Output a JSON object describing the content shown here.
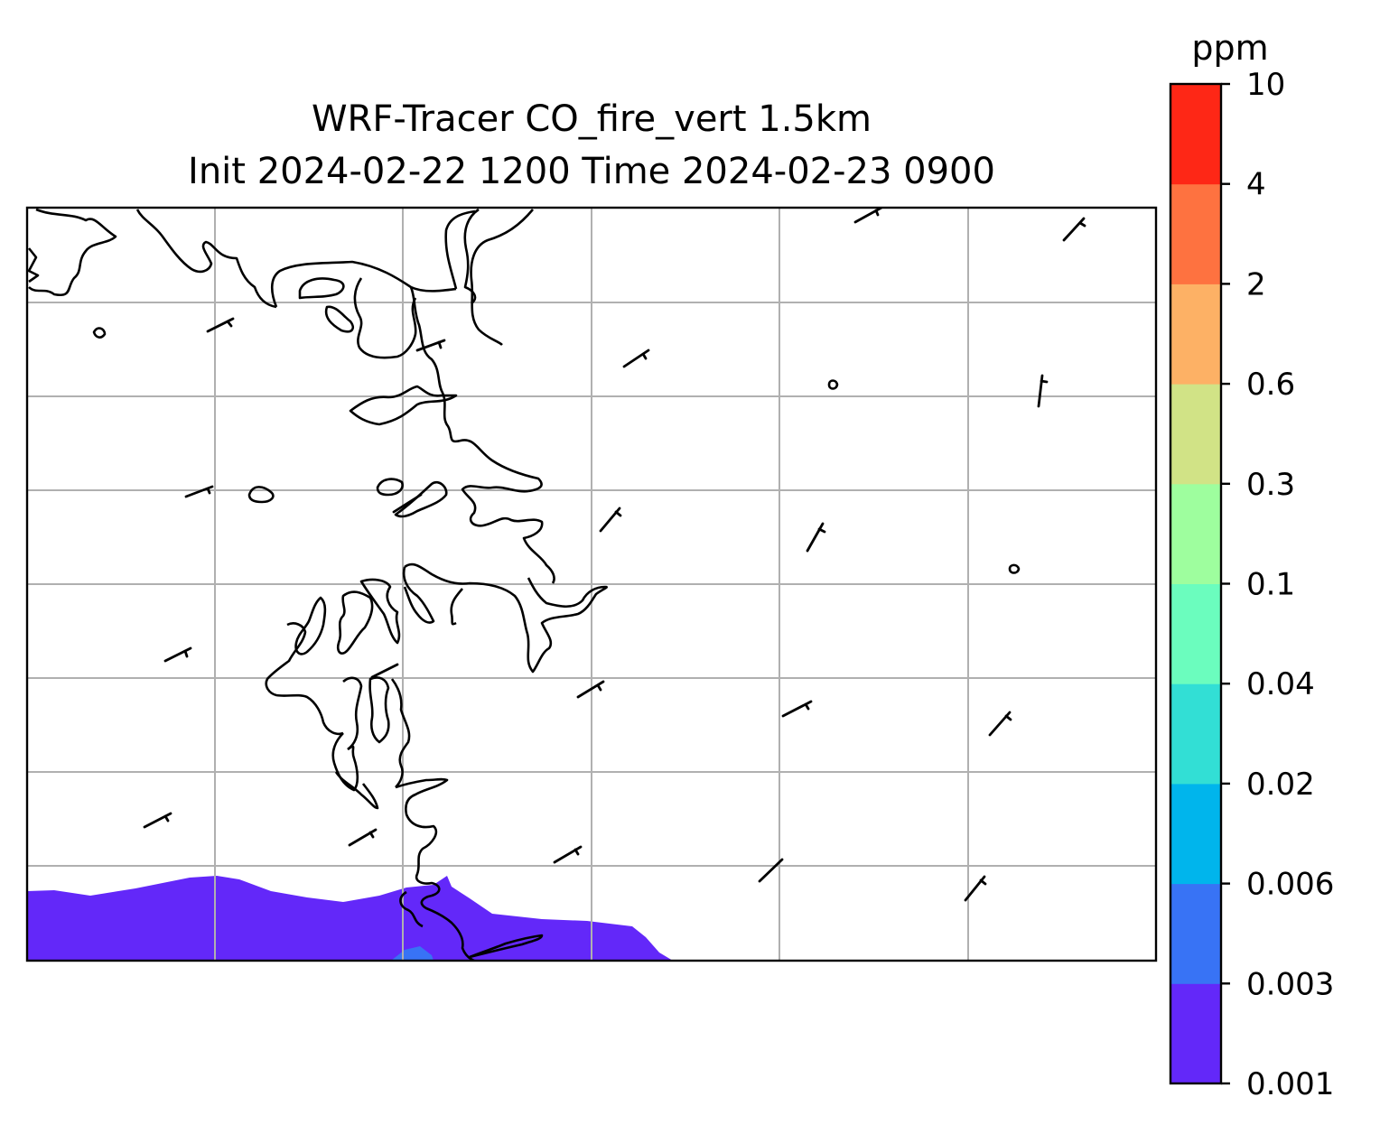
{
  "title": {
    "line1": "WRF-Tracer CO_fire_vert 1.5km",
    "line2": "Init 2024-02-22 1200 Time 2024-02-23 0900"
  },
  "colorbar": {
    "unit": "ppm",
    "levels": [
      "0.001",
      "0.003",
      "0.006",
      "0.02",
      "0.04",
      "0.1",
      "0.3",
      "0.6",
      "2",
      "4",
      "10"
    ],
    "colors": [
      "#6328f9",
      "#3873f5",
      "#00b5ec",
      "#32dfd5",
      "#6bfdbe",
      "#9efe9e",
      "#d1e386",
      "#fdb165",
      "#fe7240",
      "#fe2716"
    ]
  },
  "map": {
    "coastline_color": "#000000",
    "grid_color": "#b0b0b0",
    "plume_color": "#6328f9",
    "plume_inner_color": "#3873f5"
  }
}
